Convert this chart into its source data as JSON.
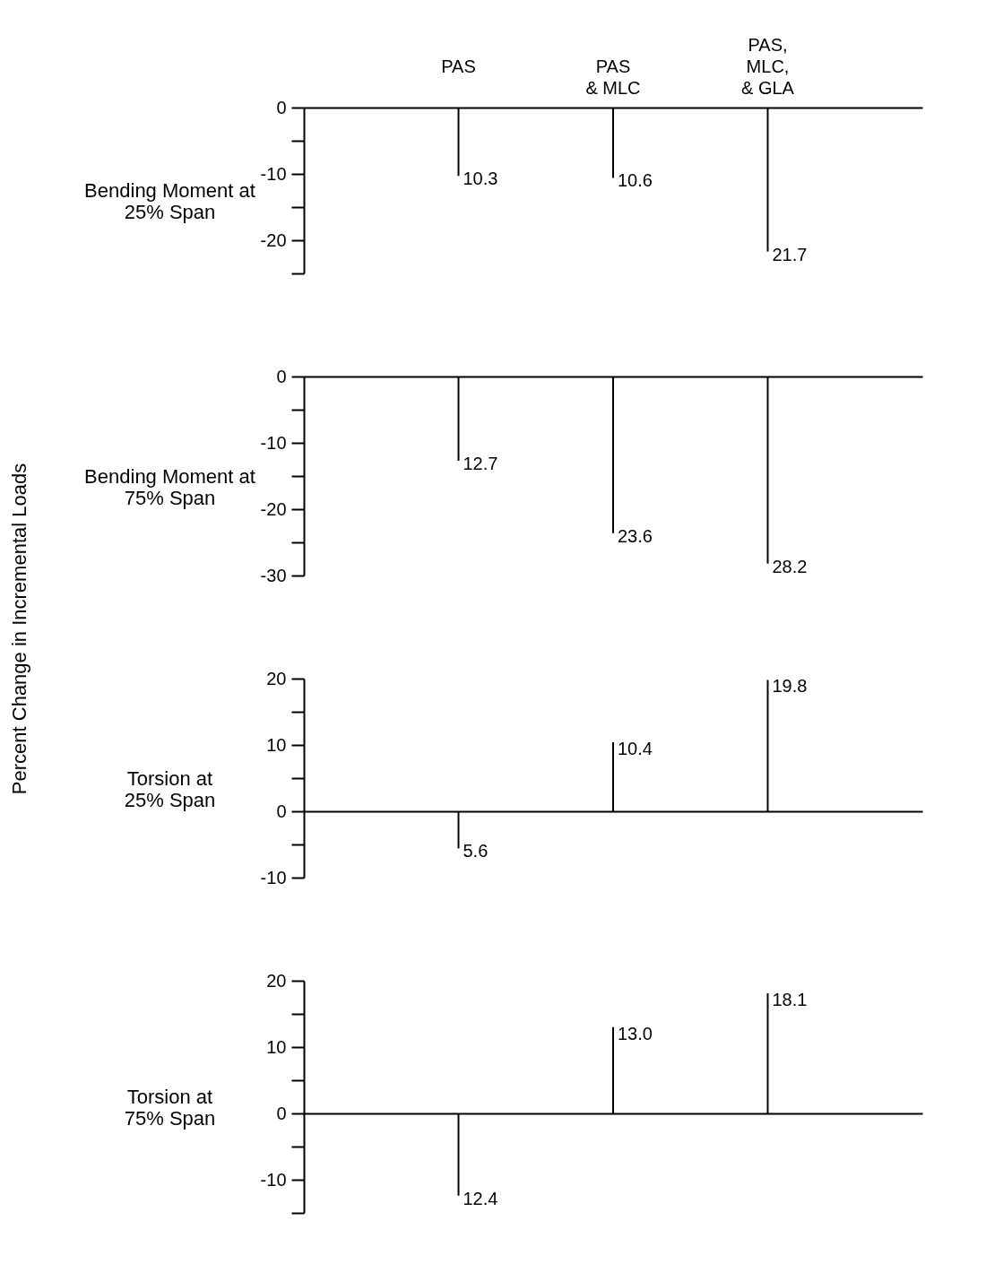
{
  "chart_data": [
    {
      "type": "bar",
      "ylabel": "Bending Moment at 25% Span",
      "annotations": [
        "Percent Change in Incremental Loads",
        {
          "text": "10.3",
          "x": "PAS",
          "y": -10.3
        },
        {
          "text": "10.6",
          "x": "PAS & MLC",
          "y": -10.6
        },
        {
          "text": "21.7",
          "x": "PAS, MLC, & GLA",
          "y": -21.7
        }
      ],
      "categories": [
        "PAS",
        "PAS & MLC",
        "PAS, MLC, & GLA"
      ],
      "values": [
        -10.3,
        -10.6,
        -21.7
      ],
      "color": "#000000",
      "ylim": [
        -25,
        0
      ],
      "yticks": [
        0,
        {
          "value": -5,
          "label": null
        },
        -10,
        {
          "value": -15,
          "label": null
        },
        -20,
        {
          "value": -25,
          "label": null
        }
      ],
      "grid": false
    },
    {
      "type": "bar",
      "ylabel": "Bending Moment at 75% Span",
      "annotations": [
        {
          "text": "12.7",
          "x": "PAS",
          "y": -12.7
        },
        {
          "text": "23.6",
          "x": "PAS & MLC",
          "y": -23.6
        },
        {
          "text": "28.2",
          "x": "PAS, MLC, & GLA",
          "y": -28.2
        }
      ],
      "categories": [
        "PAS",
        "PAS & MLC",
        "PAS, MLC, & GLA"
      ],
      "values": [
        -12.7,
        -23.6,
        -28.2
      ],
      "color": "#000000",
      "ylim": [
        -30,
        0
      ],
      "yticks": [
        0,
        {
          "value": -5,
          "label": null
        },
        -10,
        {
          "value": -15,
          "label": null
        },
        -20,
        {
          "value": -25,
          "label": null
        },
        -30
      ],
      "grid": false,
      "tick_labels": "y"
    },
    {
      "type": "bar",
      "ylabel": "Torsion at 25% Span",
      "annotations": [
        {
          "text": "5.6",
          "x": "PAS",
          "y": -5.6
        },
        {
          "text": "10.4",
          "x": "PAS & MLC",
          "y": 10.4
        },
        {
          "text": "19.8",
          "x": "PAS, MLC, & GLA",
          "y": 19.8
        }
      ],
      "categories": [
        "PAS",
        "PAS & MLC",
        "PAS, MLC, & GLA"
      ],
      "values": [
        -5.6,
        10.4,
        19.8
      ],
      "color": "#000000",
      "ylim": [
        -10,
        20
      ],
      "yticks": [
        20,
        {
          "value": 15,
          "label": null
        },
        10,
        {
          "value": 5,
          "label": null
        },
        0,
        {
          "value": -5,
          "label": null
        },
        -10
      ],
      "tick_labels": "y"
    },
    {
      "type": "bar",
      "ylabel": "Torsion at 75% Span",
      "annotations": [
        {
          "text": "12.4",
          "x": "PAS",
          "y": -12.4
        },
        {
          "text": "13.0",
          "x": "PAS & MLC",
          "y": 13.0
        },
        {
          "text": "18.1",
          "x": "PAS, MLC, & GLA",
          "y": 18.1
        }
      ],
      "categories": [
        "PAS",
        "PAS & MLC",
        "PAS, MLC, & GLA"
      ],
      "values": [
        -12.4,
        13.0,
        18.1
      ],
      "color": "#000000",
      "ylim": [
        -15,
        20
      ],
      "yticks": [
        20,
        {
          "value": 15,
          "label": null
        },
        10,
        {
          "value": 5,
          "label": null
        },
        0,
        {
          "value": -5,
          "label": null
        },
        -10,
        {
          "value": -15,
          "label": null
        }
      ],
      "tick_labels": "y"
    }
  ]
}
